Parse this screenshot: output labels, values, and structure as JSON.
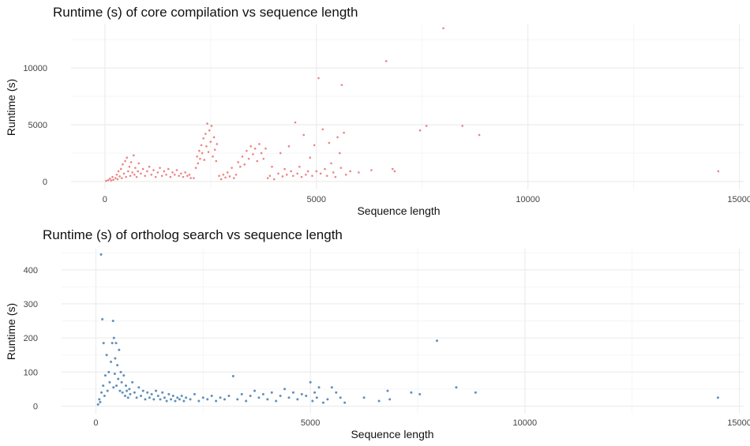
{
  "chart_data": [
    {
      "type": "scatter",
      "title": "Runtime (s) of core compilation vs sequence length",
      "xlabel": "Sequence length",
      "ylabel": "Runtime (s)",
      "xlim": [
        -800,
        15100
      ],
      "ylim": [
        -700,
        13900
      ],
      "xticks": [
        0,
        5000,
        10000,
        15000
      ],
      "xtick_labels": [
        "0",
        "5000",
        "10000",
        "15000"
      ],
      "yticks": [
        0,
        5000,
        10000
      ],
      "ytick_labels": [
        "0",
        "5000",
        "10000"
      ],
      "grid": true,
      "color": "#e8585a",
      "points": [
        [
          30,
          60
        ],
        [
          80,
          120
        ],
        [
          120,
          250
        ],
        [
          150,
          90
        ],
        [
          180,
          400
        ],
        [
          200,
          150
        ],
        [
          250,
          300
        ],
        [
          280,
          600
        ],
        [
          300,
          200
        ],
        [
          320,
          900
        ],
        [
          350,
          450
        ],
        [
          380,
          1100
        ],
        [
          400,
          300
        ],
        [
          420,
          1500
        ],
        [
          450,
          700
        ],
        [
          480,
          1800
        ],
        [
          500,
          400
        ],
        [
          520,
          2100
        ],
        [
          550,
          900
        ],
        [
          580,
          1300
        ],
        [
          600,
          500
        ],
        [
          620,
          1700
        ],
        [
          650,
          800
        ],
        [
          680,
          2300
        ],
        [
          700,
          600
        ],
        [
          720,
          1200
        ],
        [
          750,
          400
        ],
        [
          780,
          900
        ],
        [
          800,
          1600
        ],
        [
          850,
          700
        ],
        [
          900,
          1100
        ],
        [
          950,
          500
        ],
        [
          1000,
          900
        ],
        [
          1050,
          1300
        ],
        [
          1100,
          600
        ],
        [
          1150,
          1000
        ],
        [
          1200,
          400
        ],
        [
          1250,
          800
        ],
        [
          1300,
          1200
        ],
        [
          1350,
          500
        ],
        [
          1400,
          900
        ],
        [
          1450,
          600
        ],
        [
          1500,
          1100
        ],
        [
          1550,
          400
        ],
        [
          1600,
          800
        ],
        [
          1650,
          600
        ],
        [
          1700,
          1000
        ],
        [
          1750,
          500
        ],
        [
          1800,
          700
        ],
        [
          1850,
          400
        ],
        [
          1900,
          800
        ],
        [
          1950,
          500
        ],
        [
          2000,
          600
        ],
        [
          2030,
          300
        ],
        [
          2100,
          300
        ],
        [
          2150,
          1200
        ],
        [
          2180,
          2200
        ],
        [
          2200,
          1600
        ],
        [
          2230,
          2700
        ],
        [
          2250,
          2000
        ],
        [
          2280,
          3200
        ],
        [
          2300,
          2500
        ],
        [
          2330,
          3800
        ],
        [
          2350,
          1900
        ],
        [
          2380,
          4200
        ],
        [
          2400,
          3100
        ],
        [
          2420,
          5100
        ],
        [
          2450,
          2600
        ],
        [
          2470,
          4500
        ],
        [
          2500,
          3500
        ],
        [
          2520,
          4900
        ],
        [
          2550,
          2200
        ],
        [
          2580,
          3900
        ],
        [
          2600,
          2800
        ],
        [
          2630,
          1800
        ],
        [
          2650,
          3300
        ],
        [
          2700,
          500
        ],
        [
          2750,
          200
        ],
        [
          2800,
          600
        ],
        [
          2850,
          350
        ],
        [
          2900,
          800
        ],
        [
          2950,
          450
        ],
        [
          3000,
          1200
        ],
        [
          3050,
          300
        ],
        [
          3100,
          600
        ],
        [
          3150,
          1700
        ],
        [
          3200,
          1300
        ],
        [
          3250,
          2200
        ],
        [
          3300,
          1500
        ],
        [
          3350,
          2700
        ],
        [
          3400,
          2000
        ],
        [
          3450,
          3100
        ],
        [
          3500,
          2400
        ],
        [
          3550,
          2900
        ],
        [
          3600,
          1800
        ],
        [
          3650,
          3300
        ],
        [
          3700,
          2500
        ],
        [
          3750,
          2000
        ],
        [
          3800,
          2900
        ],
        [
          3850,
          300
        ],
        [
          3900,
          500
        ],
        [
          3950,
          1300
        ],
        [
          4000,
          200
        ],
        [
          4100,
          700
        ],
        [
          4150,
          2500
        ],
        [
          4200,
          450
        ],
        [
          4250,
          1100
        ],
        [
          4300,
          600
        ],
        [
          4350,
          3100
        ],
        [
          4400,
          900
        ],
        [
          4450,
          500
        ],
        [
          4500,
          5200
        ],
        [
          4550,
          700
        ],
        [
          4600,
          1300
        ],
        [
          4650,
          400
        ],
        [
          4700,
          4100
        ],
        [
          4750,
          600
        ],
        [
          4800,
          900
        ],
        [
          4850,
          2100
        ],
        [
          4900,
          500
        ],
        [
          4950,
          3200
        ],
        [
          5000,
          900
        ],
        [
          5050,
          9100
        ],
        [
          5100,
          700
        ],
        [
          5150,
          4600
        ],
        [
          5200,
          1100
        ],
        [
          5250,
          500
        ],
        [
          5300,
          3400
        ],
        [
          5350,
          1600
        ],
        [
          5400,
          800
        ],
        [
          5450,
          400
        ],
        [
          5500,
          3900
        ],
        [
          5550,
          2500
        ],
        [
          5580,
          1200
        ],
        [
          5600,
          8500
        ],
        [
          5650,
          4300
        ],
        [
          5700,
          600
        ],
        [
          5800,
          900
        ],
        [
          6000,
          800
        ],
        [
          6300,
          1000
        ],
        [
          6650,
          10600
        ],
        [
          6800,
          1100
        ],
        [
          6850,
          900
        ],
        [
          7450,
          4500
        ],
        [
          7600,
          4900
        ],
        [
          8000,
          13500
        ],
        [
          8450,
          4900
        ],
        [
          8850,
          4100
        ],
        [
          14500,
          900
        ]
      ]
    },
    {
      "type": "scatter",
      "title": "Runtime (s) of ortholog search vs sequence length",
      "xlabel": "Sequence length",
      "ylabel": "Runtime (s)",
      "xlim": [
        -800,
        15100
      ],
      "ylim": [
        -22,
        462
      ],
      "xticks": [
        0,
        5000,
        10000,
        15000
      ],
      "xtick_labels": [
        "0",
        "5000",
        "10000",
        "15000"
      ],
      "yticks": [
        0,
        100,
        200,
        300,
        400
      ],
      "ytick_labels": [
        "0",
        "100",
        "200",
        "300",
        "400"
      ],
      "grid": true,
      "color": "#4f83b5",
      "points": [
        [
          50,
          5
        ],
        [
          80,
          20
        ],
        [
          100,
          12
        ],
        [
          120,
          445
        ],
        [
          130,
          40
        ],
        [
          150,
          255
        ],
        [
          170,
          60
        ],
        [
          180,
          185
        ],
        [
          200,
          30
        ],
        [
          220,
          90
        ],
        [
          250,
          150
        ],
        [
          270,
          45
        ],
        [
          300,
          100
        ],
        [
          320,
          70
        ],
        [
          350,
          130
        ],
        [
          380,
          185
        ],
        [
          400,
          250
        ],
        [
          410,
          55
        ],
        [
          420,
          200
        ],
        [
          440,
          95
        ],
        [
          450,
          140
        ],
        [
          470,
          185
        ],
        [
          480,
          60
        ],
        [
          500,
          120
        ],
        [
          520,
          80
        ],
        [
          540,
          165
        ],
        [
          560,
          45
        ],
        [
          580,
          100
        ],
        [
          600,
          70
        ],
        [
          620,
          40
        ],
        [
          650,
          90
        ],
        [
          680,
          30
        ],
        [
          700,
          60
        ],
        [
          720,
          45
        ],
        [
          750,
          25
        ],
        [
          780,
          50
        ],
        [
          800,
          35
        ],
        [
          850,
          70
        ],
        [
          900,
          40
        ],
        [
          950,
          25
        ],
        [
          1000,
          55
        ],
        [
          1050,
          30
        ],
        [
          1100,
          45
        ],
        [
          1150,
          20
        ],
        [
          1200,
          40
        ],
        [
          1250,
          25
        ],
        [
          1300,
          35
        ],
        [
          1350,
          20
        ],
        [
          1400,
          45
        ],
        [
          1450,
          30
        ],
        [
          1500,
          20
        ],
        [
          1550,
          40
        ],
        [
          1600,
          25
        ],
        [
          1650,
          15
        ],
        [
          1700,
          35
        ],
        [
          1750,
          20
        ],
        [
          1800,
          30
        ],
        [
          1850,
          15
        ],
        [
          1900,
          25
        ],
        [
          1950,
          20
        ],
        [
          2000,
          30
        ],
        [
          2050,
          15
        ],
        [
          2100,
          25
        ],
        [
          2200,
          20
        ],
        [
          2300,
          35
        ],
        [
          2400,
          15
        ],
        [
          2500,
          25
        ],
        [
          2600,
          20
        ],
        [
          2700,
          30
        ],
        [
          2800,
          15
        ],
        [
          2900,
          25
        ],
        [
          3000,
          20
        ],
        [
          3100,
          30
        ],
        [
          3200,
          88
        ],
        [
          3300,
          20
        ],
        [
          3400,
          35
        ],
        [
          3500,
          15
        ],
        [
          3600,
          30
        ],
        [
          3700,
          45
        ],
        [
          3800,
          25
        ],
        [
          3900,
          35
        ],
        [
          4000,
          20
        ],
        [
          4100,
          40
        ],
        [
          4200,
          15
        ],
        [
          4300,
          30
        ],
        [
          4400,
          50
        ],
        [
          4500,
          25
        ],
        [
          4600,
          40
        ],
        [
          4700,
          20
        ],
        [
          4800,
          35
        ],
        [
          4900,
          30
        ],
        [
          5000,
          70
        ],
        [
          5050,
          15
        ],
        [
          5100,
          40
        ],
        [
          5150,
          25
        ],
        [
          5200,
          55
        ],
        [
          5300,
          10
        ],
        [
          5400,
          20
        ],
        [
          5500,
          55
        ],
        [
          5600,
          40
        ],
        [
          5700,
          25
        ],
        [
          5800,
          10
        ],
        [
          6250,
          25
        ],
        [
          6600,
          15
        ],
        [
          6800,
          45
        ],
        [
          6850,
          20
        ],
        [
          7350,
          40
        ],
        [
          7550,
          35
        ],
        [
          7950,
          192
        ],
        [
          8400,
          55
        ],
        [
          8850,
          40
        ],
        [
          14500,
          25
        ]
      ]
    }
  ]
}
